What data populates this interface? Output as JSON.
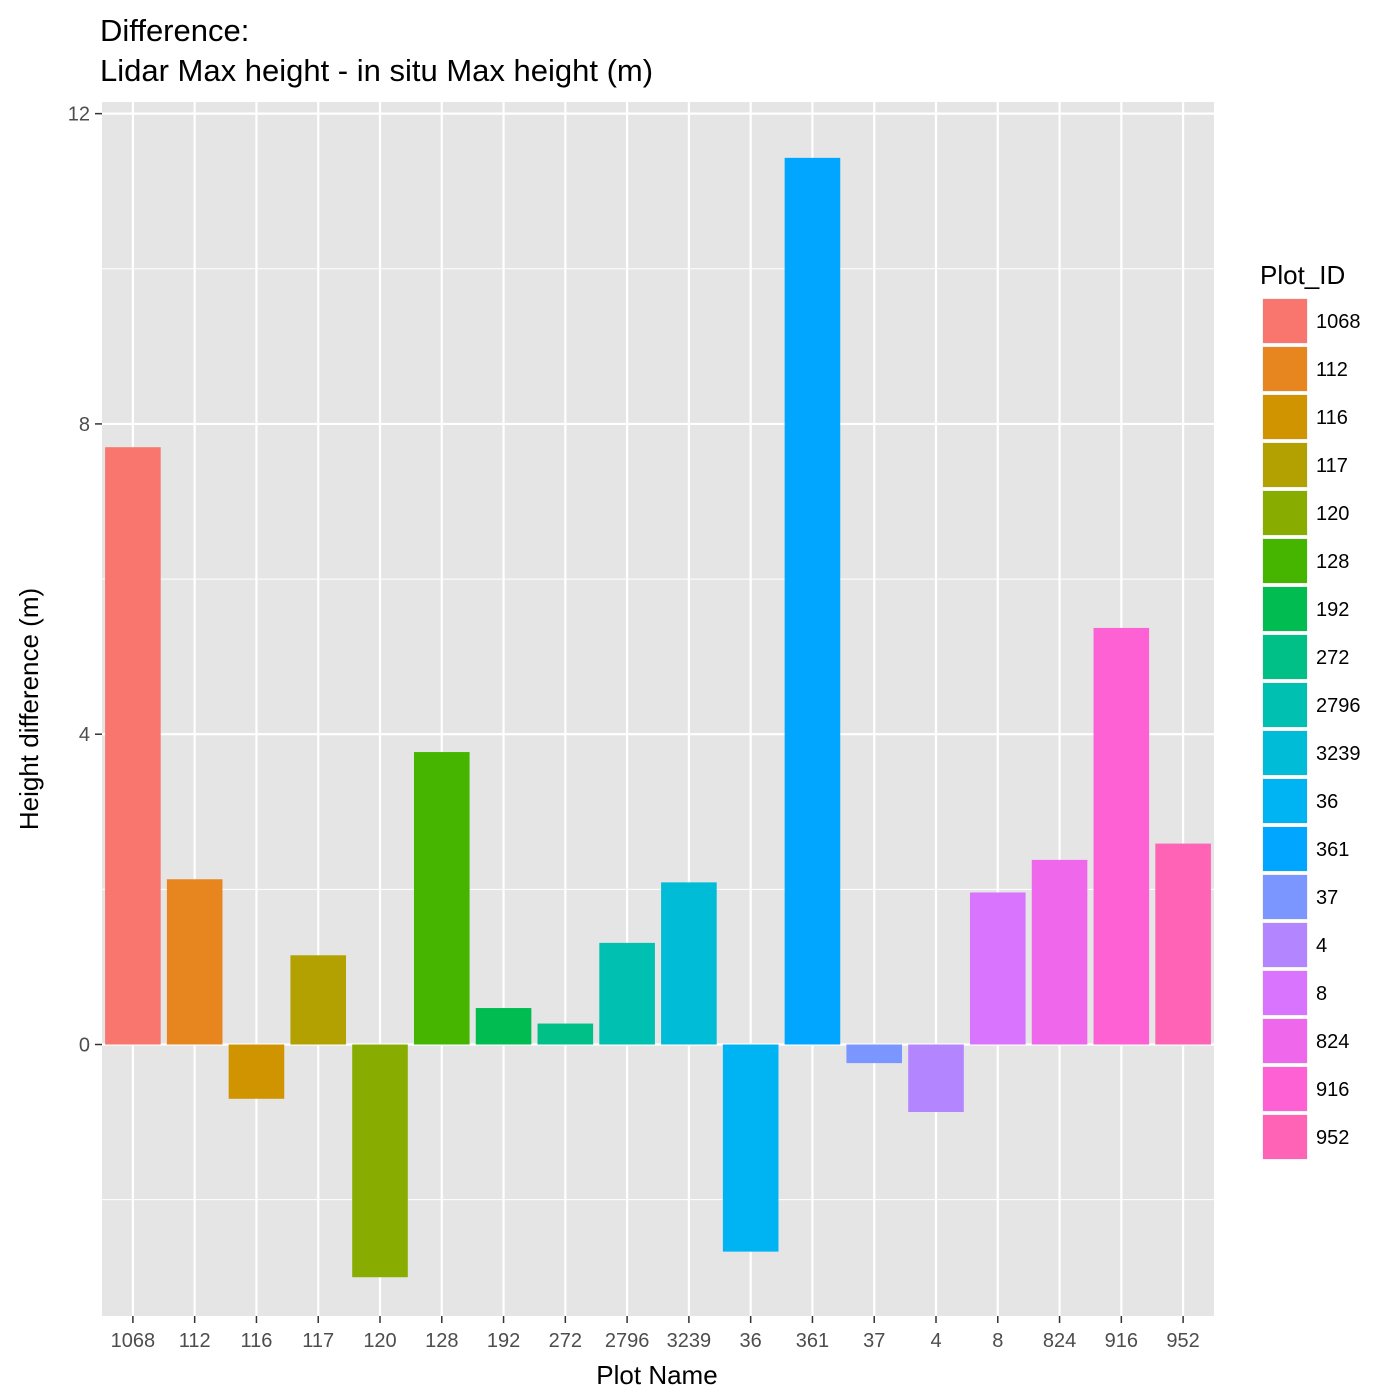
{
  "chart_data": {
    "type": "bar",
    "title": "Difference:",
    "subtitle": "Lidar Max height - in situ Max height (m)",
    "xlabel": "Plot Name",
    "ylabel": "Height difference (m)",
    "ylim": [
      -3.5,
      12.15
    ],
    "yticks": [
      0,
      4,
      8,
      12
    ],
    "yticks_labels": [
      "0",
      "4",
      "8",
      "12"
    ],
    "grid": true,
    "categories": [
      "1068",
      "112",
      "116",
      "117",
      "120",
      "128",
      "192",
      "272",
      "2796",
      "3239",
      "36",
      "361",
      "37",
      "4",
      "8",
      "824",
      "916",
      "952"
    ],
    "values": [
      7.7,
      2.13,
      -0.7,
      1.15,
      -3.0,
      3.77,
      0.47,
      0.27,
      1.31,
      2.09,
      -2.67,
      11.43,
      -0.24,
      -0.87,
      1.96,
      2.38,
      5.37,
      2.59
    ],
    "colors": [
      "#F8766D",
      "#E7851E",
      "#D09400",
      "#B2A100",
      "#89AC00",
      "#45B500",
      "#00BC51",
      "#00C087",
      "#00C0B2",
      "#00BCD6",
      "#00B3F2",
      "#00A6FF",
      "#7C96FF",
      "#B385FF",
      "#D874FD",
      "#EF67EB",
      "#FD61D3",
      "#FF63B6"
    ],
    "legend": {
      "title": "Plot_ID",
      "placement": "right",
      "items": [
        "1068",
        "112",
        "116",
        "117",
        "120",
        "128",
        "192",
        "272",
        "2796",
        "3239",
        "36",
        "361",
        "37",
        "4",
        "8",
        "824",
        "916",
        "952"
      ]
    }
  },
  "colors": {
    "panel_background": "#E5E5E5",
    "grid_line": "#FFFFFF",
    "tick_text": "#4D4D4D"
  }
}
